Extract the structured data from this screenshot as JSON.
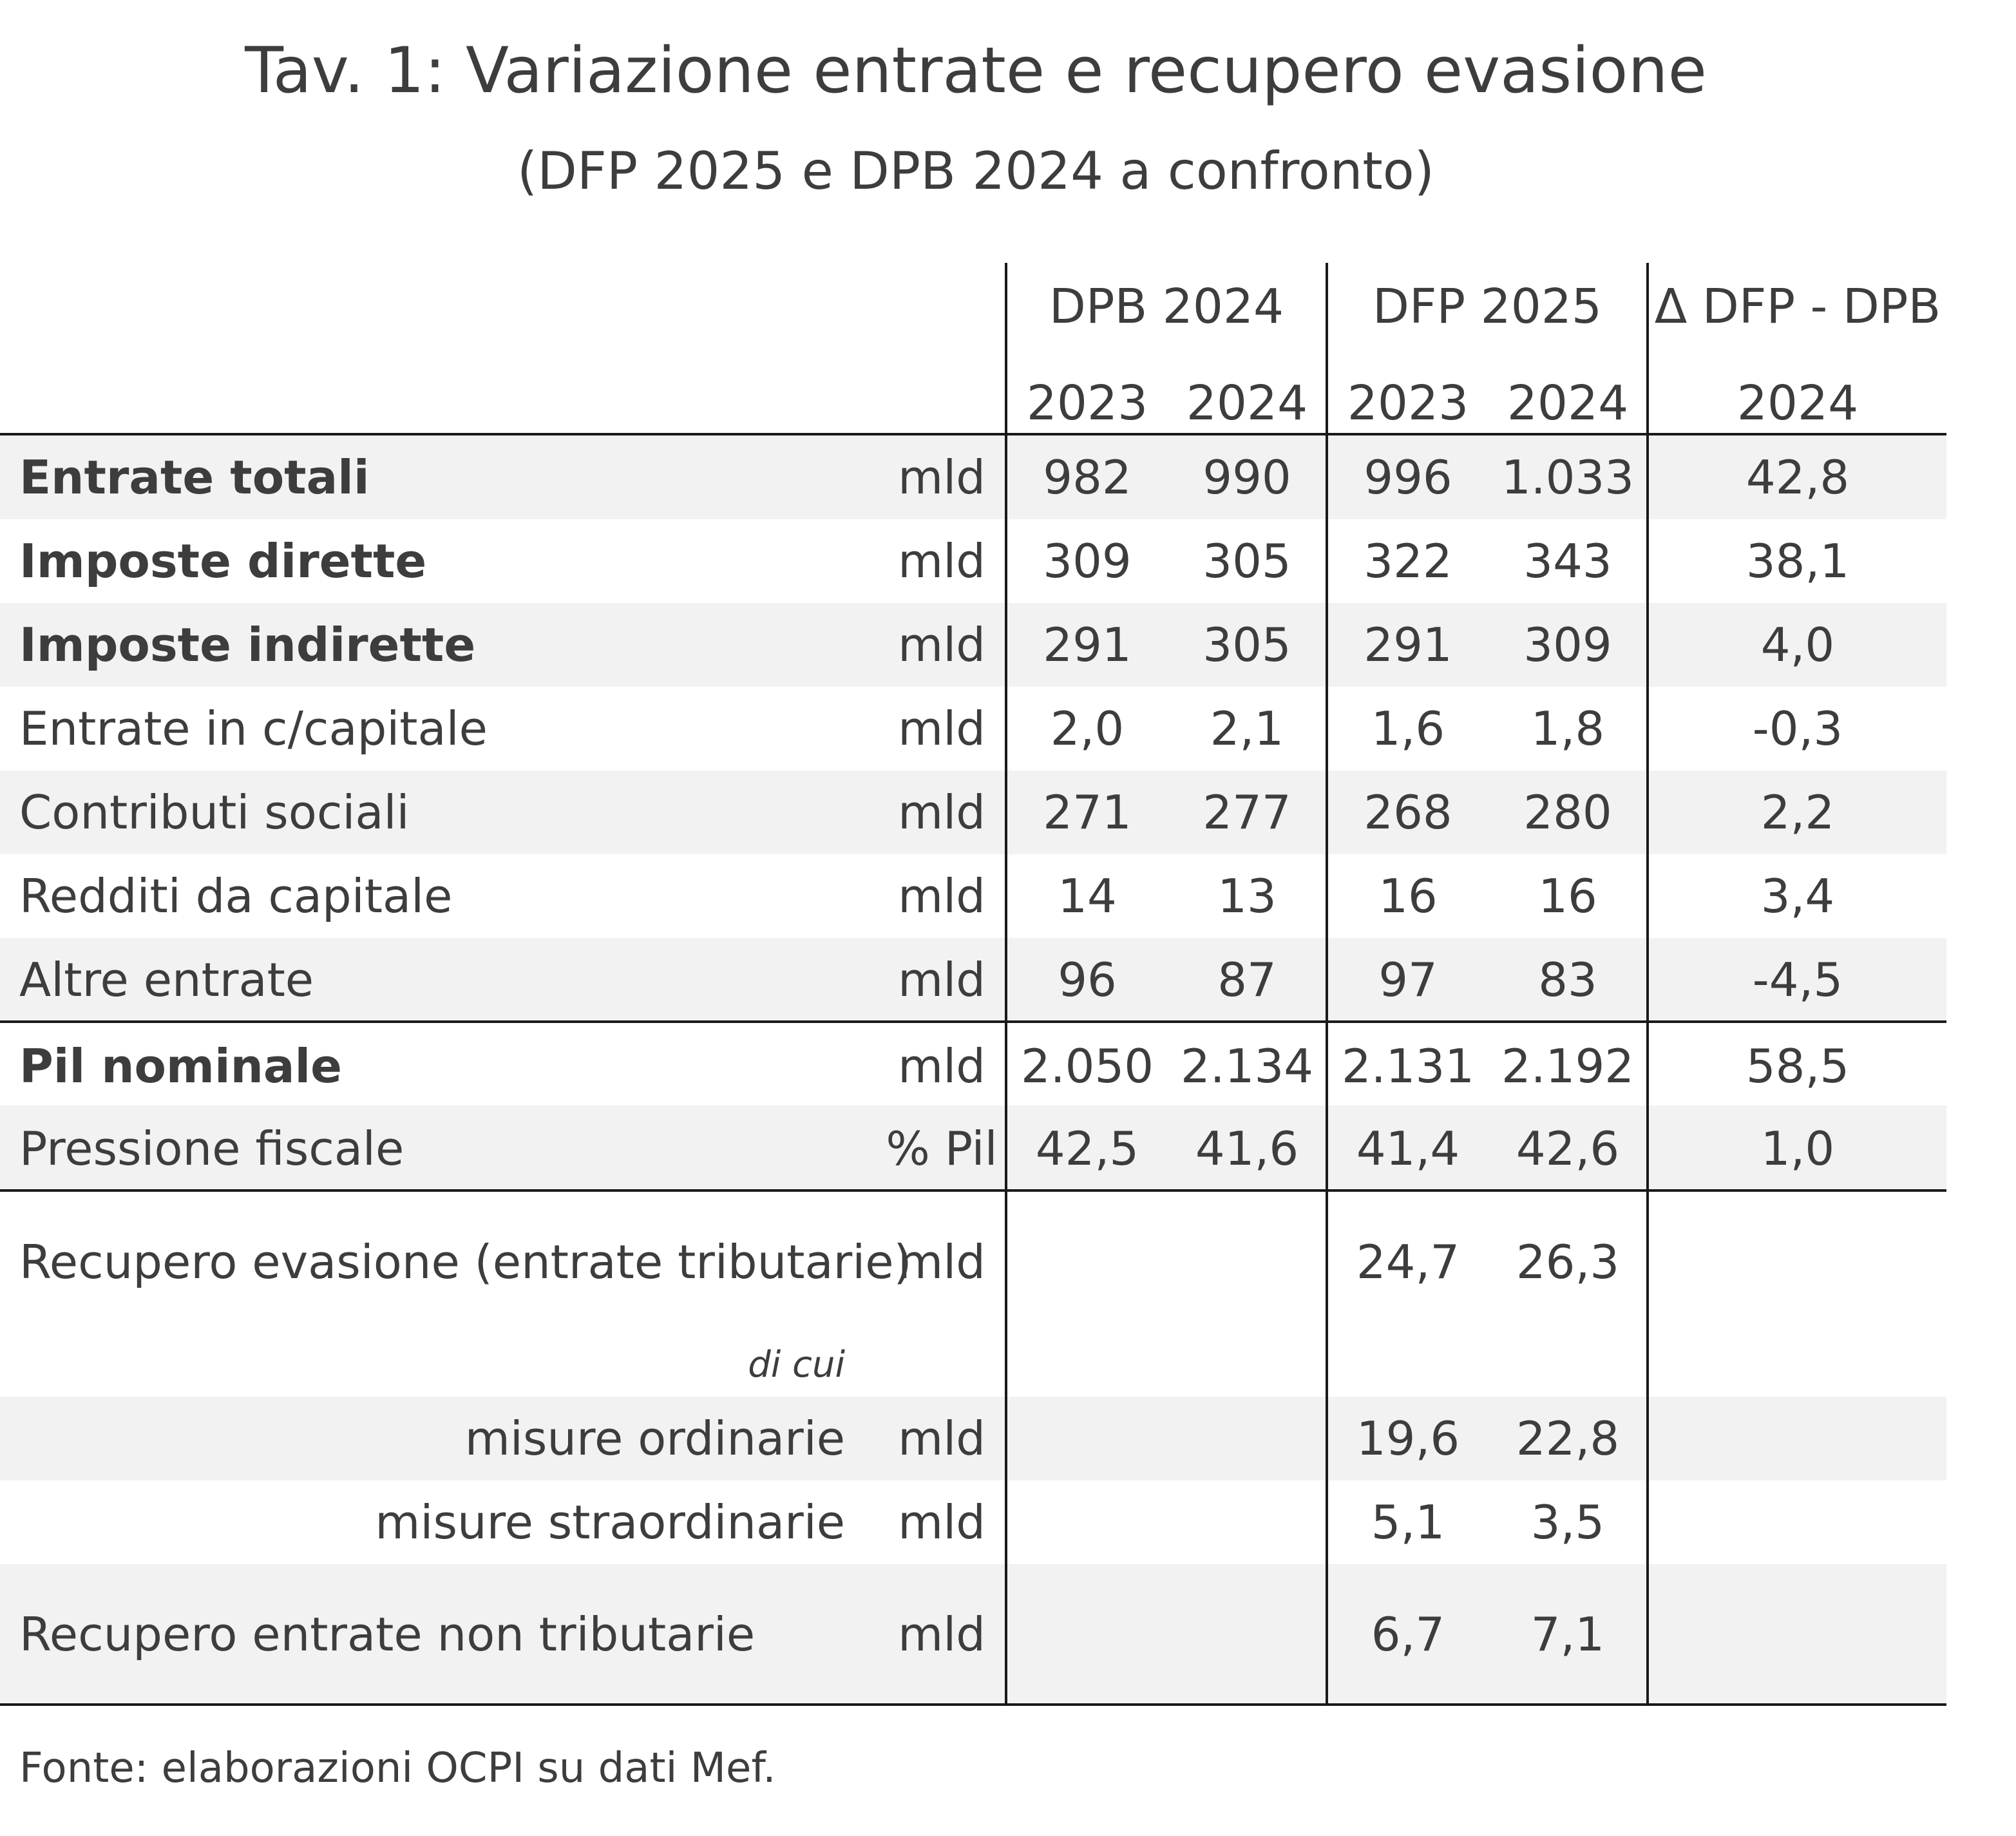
{
  "title": "Tav. 1: Variazione entrate e recupero evasione",
  "subtitle": "(DFP 2025 e DPB 2024 a confronto)",
  "header": {
    "groups": [
      "DPB 2024",
      "DFP 2025",
      "Δ DFP - DPB"
    ],
    "years": [
      "2023",
      "2024",
      "2023",
      "2024",
      "2024"
    ]
  },
  "rows": [
    {
      "label": "Entrate totali",
      "unit": "mld",
      "values": [
        "982",
        "990",
        "996",
        "1.033",
        "42,8"
      ]
    },
    {
      "label": "Imposte dirette",
      "unit": "mld",
      "values": [
        "309",
        "305",
        "322",
        "343",
        "38,1"
      ]
    },
    {
      "label": "Imposte indirette",
      "unit": "mld",
      "values": [
        "291",
        "305",
        "291",
        "309",
        "4,0"
      ]
    },
    {
      "label": "Entrate in c/capitale",
      "unit": "mld",
      "values": [
        "2,0",
        "2,1",
        "1,6",
        "1,8",
        "-0,3"
      ]
    },
    {
      "label": "Contributi sociali",
      "unit": "mld",
      "values": [
        "271",
        "277",
        "268",
        "280",
        "2,2"
      ]
    },
    {
      "label": "Redditi da capitale",
      "unit": "mld",
      "values": [
        "14",
        "13",
        "16",
        "16",
        "3,4"
      ]
    },
    {
      "label": "Altre entrate",
      "unit": "mld",
      "values": [
        "96",
        "87",
        "97",
        "83",
        "-4,5"
      ]
    },
    {
      "label": "Pil nominale",
      "unit": "mld",
      "values": [
        "2.050",
        "2.134",
        "2.131",
        "2.192",
        "58,5"
      ]
    },
    {
      "label": "Pressione fiscale",
      "unit": "% Pil",
      "values": [
        "42,5",
        "41,6",
        "41,4",
        "42,6",
        "1,0"
      ]
    },
    {
      "label": "Recupero evasione (entrate tributarie)",
      "unit": "mld",
      "values": [
        "",
        "",
        "24,7",
        "26,3",
        ""
      ]
    },
    {
      "label": "misure ordinarie",
      "unit": "mld",
      "values": [
        "",
        "",
        "19,6",
        "22,8",
        ""
      ]
    },
    {
      "label": "misure straordinarie",
      "unit": "mld",
      "values": [
        "",
        "",
        "5,1",
        "3,5",
        ""
      ]
    },
    {
      "label": "Recupero entrate non tributarie",
      "unit": "mld",
      "values": [
        "",
        "",
        "6,7",
        "7,1",
        ""
      ]
    }
  ],
  "di_cui": "di cui",
  "source": "Fonte: elaborazioni OCPI su dati Mef."
}
